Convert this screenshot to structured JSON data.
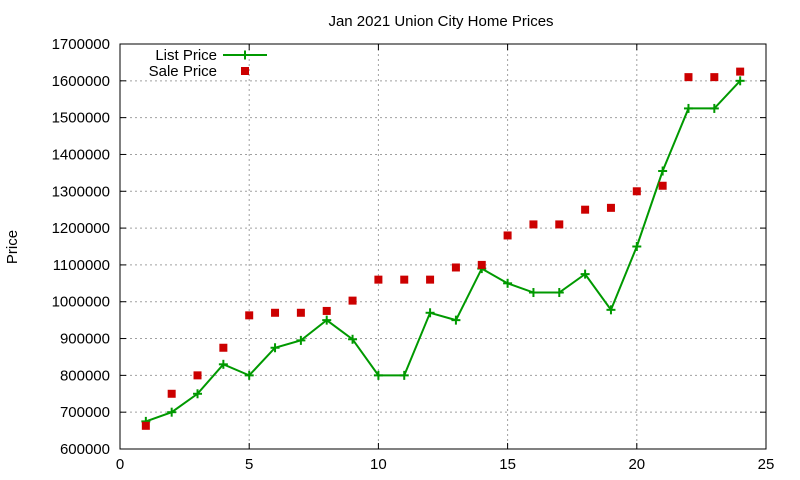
{
  "chart_data": {
    "type": "line",
    "title": "Jan 2021 Union City Home Prices",
    "xlabel": "",
    "ylabel": "Price",
    "xlim": [
      0,
      25
    ],
    "ylim": [
      600000,
      1700000
    ],
    "x_ticks": [
      "0",
      "5",
      "10",
      "15",
      "20",
      "25"
    ],
    "y_ticks": [
      "600000",
      "700000",
      "800000",
      "900000",
      "1000000",
      "1100000",
      "1200000",
      "1300000",
      "1400000",
      "1500000",
      "1600000",
      "1700000"
    ],
    "grid": true,
    "legend_position": "top-left",
    "series": [
      {
        "name": "List Price",
        "style": "line-plus",
        "color": "#009900",
        "x": [
          1,
          2,
          3,
          4,
          5,
          6,
          7,
          8,
          9,
          10,
          11,
          12,
          13,
          14,
          15,
          16,
          17,
          18,
          19,
          20,
          21,
          22,
          23,
          24
        ],
        "values": [
          675000,
          700000,
          750000,
          830000,
          800000,
          875000,
          895000,
          950000,
          898000,
          800000,
          800000,
          970000,
          950000,
          1090000,
          1050000,
          1025000,
          1025000,
          1075000,
          978000,
          1150000,
          1355000,
          1525000,
          1525000,
          1600000
        ]
      },
      {
        "name": "Sale Price",
        "style": "square-points",
        "color": "#cc0000",
        "x": [
          1,
          2,
          3,
          4,
          5,
          6,
          7,
          8,
          9,
          10,
          11,
          12,
          13,
          14,
          15,
          16,
          17,
          18,
          19,
          20,
          21,
          22,
          23,
          24
        ],
        "values": [
          663000,
          750000,
          800000,
          875000,
          963000,
          970000,
          970000,
          975000,
          1003000,
          1060000,
          1060000,
          1060000,
          1093000,
          1100000,
          1180000,
          1210000,
          1210000,
          1250000,
          1255000,
          1300000,
          1315000,
          1610000,
          1610000,
          1625000
        ]
      }
    ]
  }
}
